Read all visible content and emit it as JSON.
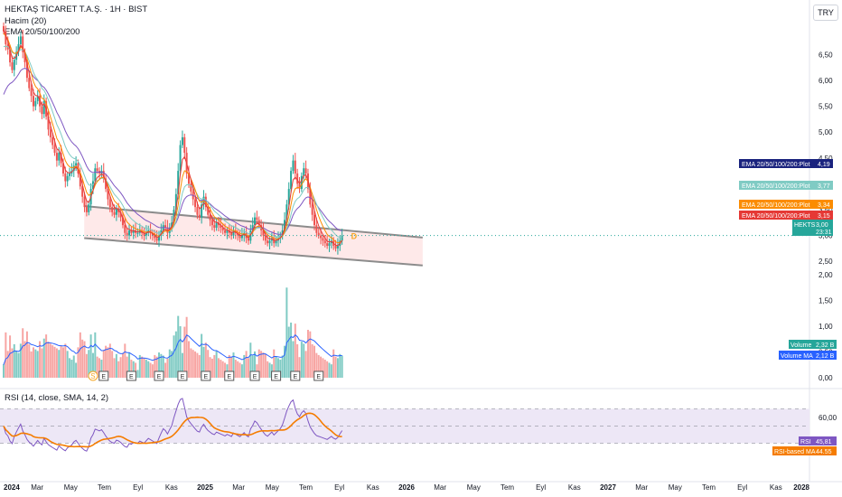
{
  "header": {
    "symbol_line": "HEKTAŞ TİCARET T.A.Ş. · 1H · BIST",
    "volume_line": "Hacim (20)",
    "ema_line": "EMA 20/50/100/200",
    "currency": "TRY"
  },
  "colors": {
    "up": "#26a69a",
    "down": "#ef5350",
    "channel_fill": "#fde2e2",
    "channel_line": "#8c8c8c",
    "ema20": "#e53935",
    "ema50": "#fb8c00",
    "ema100": "#80cbc4",
    "ema200": "#7e57c2",
    "rsi": "#7e57c2",
    "rsi_ma": "#f57c00",
    "volume_ma": "#2962ff",
    "rsi_band": "#ede7f6"
  },
  "chart_data": {
    "type": "candlestick",
    "x_labels": [
      "2024",
      "Mar",
      "May",
      "Tem",
      "Eyl",
      "Kas",
      "2025",
      "Mar",
      "May",
      "Tem",
      "Eyl",
      "Kas",
      "2026",
      "Mar",
      "May",
      "Tem",
      "Eyl",
      "Kas",
      "2027",
      "Mar",
      "May",
      "Tem",
      "Eyl",
      "Kas",
      "2028"
    ],
    "x_start": 2024.0,
    "x_end": 2028.0,
    "price_axis": {
      "ticks": [
        "6,50",
        "6,00",
        "5,50",
        "5,00",
        "4,50",
        "4,00",
        "3,50",
        "3,00",
        "2,50"
      ],
      "ylim": [
        2.2,
        7.0
      ]
    },
    "volume_axis": {
      "ticks": [
        "2,00",
        "1,50",
        "1,00",
        "0,50",
        "0,00"
      ],
      "ylim": [
        0,
        2.25
      ]
    },
    "rsi_axis": {
      "ticks": [
        "60,00"
      ],
      "ylim": [
        15,
        80
      ],
      "bands": [
        70,
        30
      ],
      "mid": 50
    },
    "closes": [
      6.95,
      6.7,
      6.6,
      6.35,
      6.2,
      6.4,
      6.55,
      6.7,
      6.85,
      6.55,
      6.35,
      6.05,
      5.85,
      5.7,
      5.5,
      5.6,
      5.7,
      5.5,
      5.35,
      5.6,
      5.3,
      5.05,
      4.9,
      4.75,
      4.6,
      4.45,
      4.6,
      4.4,
      4.2,
      4.05,
      4.15,
      4.2,
      4.25,
      4.35,
      4.4,
      4.2,
      3.95,
      3.75,
      3.55,
      3.45,
      3.6,
      3.9,
      4.05,
      4.3,
      4.25,
      4.2,
      4.25,
      4.1,
      3.9,
      3.7,
      3.55,
      3.45,
      3.4,
      3.5,
      3.45,
      3.35,
      3.2,
      3.05,
      3.0,
      3.1,
      3.05,
      3.1,
      3.05,
      3.05,
      3.1,
      3.05,
      3.0,
      3.05,
      3.1,
      3.05,
      3.0,
      2.95,
      2.9,
      3.0,
      3.1,
      3.2,
      3.15,
      3.05,
      3.15,
      3.25,
      3.5,
      3.8,
      4.25,
      4.75,
      4.9,
      4.6,
      4.2,
      4.0,
      3.85,
      3.7,
      3.55,
      3.4,
      3.35,
      3.6,
      3.75,
      3.55,
      3.4,
      3.3,
      3.2,
      3.15,
      3.25,
      3.2,
      3.15,
      3.1,
      3.05,
      3.1,
      3.05,
      3.0,
      3.1,
      3.05,
      3.0,
      2.95,
      3.0,
      3.05,
      2.95,
      2.9,
      3.1,
      3.2,
      3.35,
      3.3,
      3.2,
      3.1,
      3.0,
      2.9,
      2.85,
      2.9,
      2.95,
      2.85,
      2.9,
      2.95,
      3.0,
      3.1,
      3.3,
      3.6,
      3.9,
      4.25,
      4.45,
      4.2,
      4.0,
      3.9,
      4.15,
      4.3,
      4.2,
      3.9,
      3.6,
      3.4,
      3.2,
      3.05,
      3.0,
      2.95,
      2.9,
      2.85,
      2.8,
      2.85,
      2.9,
      2.8,
      2.75,
      2.8,
      2.9,
      3.0
    ],
    "series": [
      {
        "name": "EMA 20/50/100/200:Plot",
        "last": "4,19"
      },
      {
        "name": "EMA 20/50/100/200:Plot",
        "last": "3,77"
      },
      {
        "name": "EMA 20/50/100/200:Plot",
        "last": "3,34"
      },
      {
        "name": "EMA 20/50/100/200:Plot",
        "last": "3,15"
      }
    ],
    "last_price_label": "HEKTS",
    "last_price_value": "3,00",
    "last_price_countdown": "23:31",
    "volume_labels": [
      {
        "name": "Volume",
        "value": "2,32 B"
      },
      {
        "name": "Volume MA",
        "value": "2,12 B"
      }
    ],
    "rsi_title": "RSI (14, close, SMA, 14, 2)",
    "rsi_labels": [
      {
        "name": "RSI",
        "value": "45,81"
      },
      {
        "name": "RSI-based MA",
        "value": "44.55"
      }
    ],
    "event_markers": {
      "S": [
        "S"
      ],
      "E": [
        "E",
        "E",
        "E",
        "E",
        "E",
        "E",
        "E",
        "E",
        "E",
        "E"
      ]
    },
    "dividend_marker": "D"
  }
}
